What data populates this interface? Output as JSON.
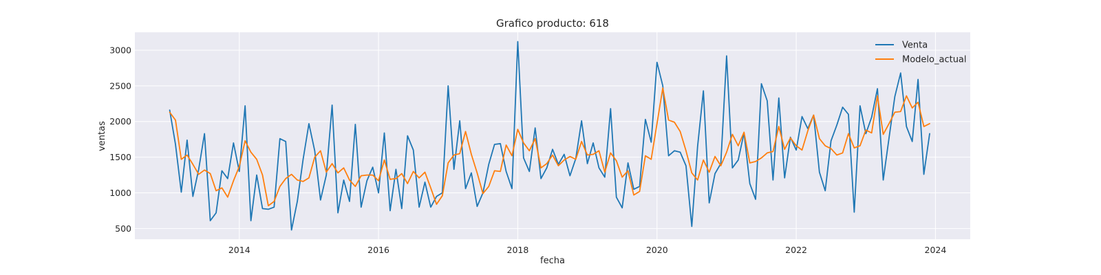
{
  "chart_data": {
    "type": "line",
    "title": "Grafico producto: 618",
    "xlabel": "fecha",
    "ylabel": "ventas",
    "x_start": "2013-01",
    "x_frequency": "monthly",
    "xlim": [
      2012.5,
      2024.5
    ],
    "ylim": [
      350,
      3250
    ],
    "x_ticks": [
      2014,
      2016,
      2018,
      2020,
      2022,
      2024
    ],
    "x_tick_labels": [
      "2014",
      "2016",
      "2018",
      "2020",
      "2022",
      "2024"
    ],
    "y_ticks": [
      500,
      1000,
      1500,
      2000,
      2500,
      3000
    ],
    "y_tick_labels": [
      "500",
      "1000",
      "1500",
      "2000",
      "2500",
      "3000"
    ],
    "grid": true,
    "legend_position": "top-right",
    "background_color": "#eaeaf2",
    "series": [
      {
        "name": "Venta",
        "color": "#1f77b4",
        "values": [
          2160,
          1680,
          1010,
          1740,
          950,
          1330,
          1830,
          610,
          720,
          1310,
          1200,
          1700,
          1300,
          2220,
          610,
          1250,
          780,
          770,
          800,
          1760,
          1720,
          480,
          880,
          1470,
          1970,
          1590,
          900,
          1250,
          2230,
          720,
          1180,
          880,
          1960,
          800,
          1170,
          1360,
          1000,
          1840,
          750,
          1330,
          780,
          1800,
          1600,
          800,
          1150,
          800,
          950,
          1000,
          2500,
          1330,
          2010,
          1060,
          1280,
          810,
          1000,
          1400,
          1680,
          1690,
          1300,
          1060,
          3120,
          1490,
          1300,
          1910,
          1200,
          1350,
          1610,
          1400,
          1540,
          1240,
          1480,
          2010,
          1410,
          1700,
          1350,
          1220,
          2180,
          940,
          790,
          1420,
          1050,
          1090,
          2030,
          1710,
          2830,
          2500,
          1520,
          1590,
          1570,
          1380,
          530,
          1650,
          2430,
          860,
          1270,
          1410,
          2920,
          1350,
          1460,
          1840,
          1130,
          910,
          2530,
          2290,
          1180,
          2330,
          1210,
          1780,
          1600,
          2070,
          1900,
          2090,
          1290,
          1030,
          1730,
          1950,
          2200,
          2100,
          730,
          2220,
          1830,
          2060,
          2460,
          1180,
          1770,
          2350,
          2680,
          1930,
          1720,
          2590,
          1260,
          1830
        ]
      },
      {
        "name": "Modelo_actual",
        "color": "#ff7f0e",
        "values": [
          2130,
          2020,
          1470,
          1530,
          1400,
          1260,
          1320,
          1270,
          1030,
          1070,
          940,
          1170,
          1370,
          1730,
          1570,
          1470,
          1250,
          820,
          880,
          1090,
          1200,
          1260,
          1180,
          1160,
          1210,
          1500,
          1590,
          1290,
          1410,
          1280,
          1350,
          1180,
          1090,
          1240,
          1250,
          1250,
          1170,
          1460,
          1190,
          1200,
          1270,
          1130,
          1300,
          1210,
          1290,
          1070,
          840,
          960,
          1420,
          1530,
          1550,
          1860,
          1540,
          1280,
          990,
          1090,
          1310,
          1300,
          1670,
          1520,
          1890,
          1700,
          1590,
          1760,
          1350,
          1410,
          1530,
          1380,
          1460,
          1510,
          1470,
          1720,
          1530,
          1540,
          1590,
          1290,
          1560,
          1450,
          1220,
          1310,
          970,
          1020,
          1520,
          1470,
          1970,
          2470,
          2020,
          1990,
          1860,
          1590,
          1280,
          1180,
          1460,
          1290,
          1510,
          1380,
          1570,
          1820,
          1660,
          1850,
          1420,
          1440,
          1490,
          1560,
          1580,
          1930,
          1610,
          1770,
          1660,
          1600,
          1870,
          2090,
          1760,
          1660,
          1620,
          1530,
          1560,
          1830,
          1630,
          1660,
          1880,
          1840,
          2360,
          1820,
          1970,
          2130,
          2140,
          2360,
          2190,
          2270,
          1930,
          1970
        ]
      }
    ]
  }
}
